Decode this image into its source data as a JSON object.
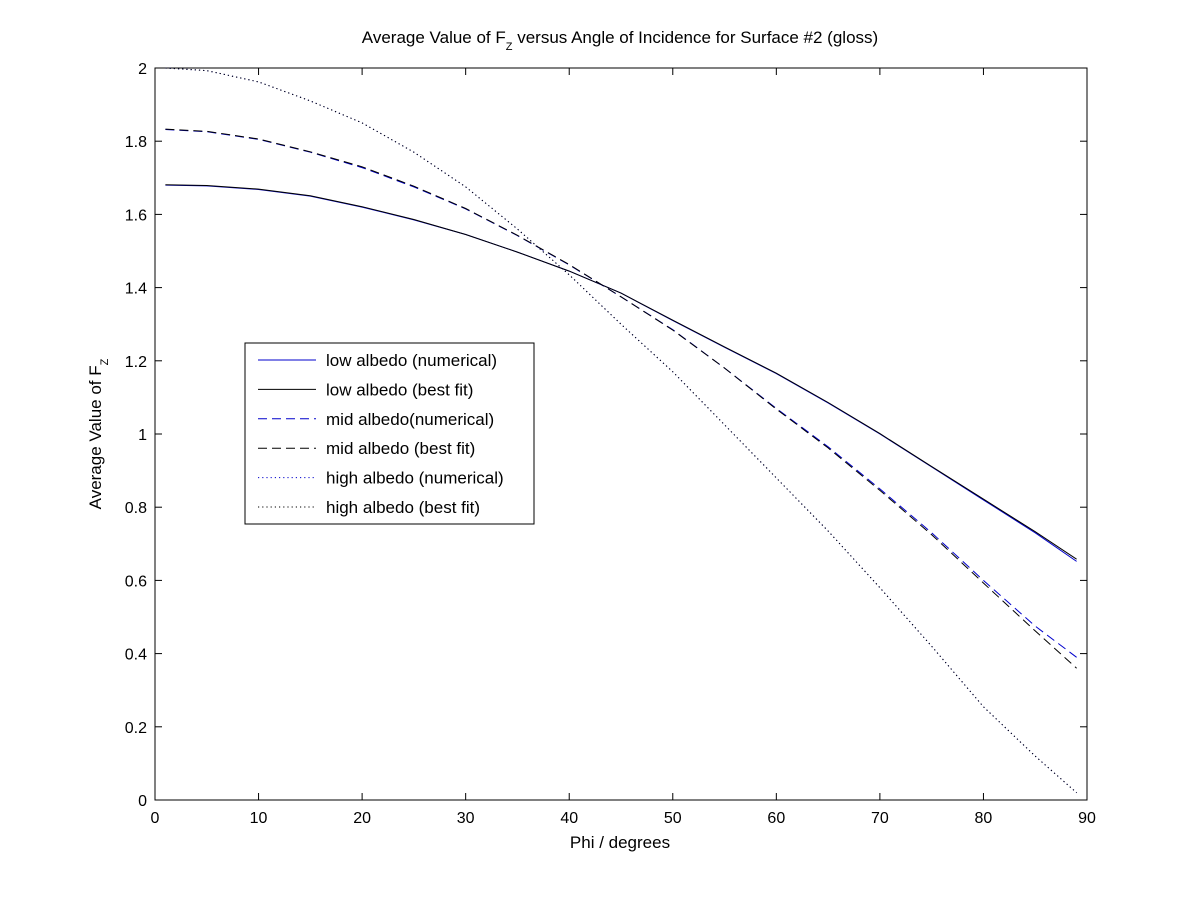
{
  "chart_data": {
    "type": "line",
    "title": {
      "main": "Average Value of F",
      "sub": "Z",
      "rest": " versus Angle of Incidence for Surface #2 (gloss)"
    },
    "xlabel": "Phi / degrees",
    "ylabel": {
      "main": "Average Value of F",
      "sub": "Z"
    },
    "xlim": [
      0,
      90
    ],
    "ylim": [
      0,
      2
    ],
    "xticks": [
      "0",
      "10",
      "20",
      "30",
      "40",
      "50",
      "60",
      "70",
      "80",
      "90"
    ],
    "yticks": [
      "0",
      "0.2",
      "0.4",
      "0.6",
      "0.8",
      "1",
      "1.2",
      "1.4",
      "1.6",
      "1.8",
      "2"
    ],
    "grid": false,
    "legend_position": "left-middle",
    "x": [
      1,
      5,
      10,
      15,
      20,
      25,
      30,
      35,
      40,
      45,
      50,
      55,
      60,
      65,
      70,
      75,
      80,
      85,
      89
    ],
    "series": [
      {
        "name": "low albedo (numerical)",
        "color": "#0000cc",
        "dash": "solid",
        "values": [
          1.68,
          1.678,
          1.668,
          1.65,
          1.62,
          1.585,
          1.545,
          1.497,
          1.445,
          1.385,
          1.31,
          1.237,
          1.165,
          1.085,
          1.0,
          0.91,
          0.82,
          0.73,
          0.652
        ]
      },
      {
        "name": "low albedo (best fit)",
        "color": "#000000",
        "dash": "solid",
        "values": [
          1.681,
          1.679,
          1.669,
          1.651,
          1.621,
          1.586,
          1.545,
          1.497,
          1.445,
          1.385,
          1.311,
          1.238,
          1.166,
          1.086,
          1.001,
          0.911,
          0.822,
          0.733,
          0.658
        ]
      },
      {
        "name": "mid albedo(numerical)",
        "color": "#0000cc",
        "dash": "dashed",
        "values": [
          1.832,
          1.826,
          1.805,
          1.77,
          1.728,
          1.675,
          1.615,
          1.542,
          1.462,
          1.375,
          1.285,
          1.18,
          1.07,
          0.965,
          0.85,
          0.73,
          0.6,
          0.475,
          0.39
        ]
      },
      {
        "name": "mid albedo (best fit)",
        "color": "#000000",
        "dash": "dashed",
        "values": [
          1.833,
          1.827,
          1.806,
          1.771,
          1.73,
          1.677,
          1.616,
          1.543,
          1.463,
          1.375,
          1.284,
          1.18,
          1.068,
          0.962,
          0.846,
          0.725,
          0.593,
          0.462,
          0.36
        ]
      },
      {
        "name": "high albedo (numerical)",
        "color": "#0000cc",
        "dash": "dotted",
        "values": [
          2.0,
          1.993,
          1.962,
          1.91,
          1.85,
          1.77,
          1.675,
          1.56,
          1.435,
          1.3,
          1.17,
          1.025,
          0.88,
          0.735,
          0.58,
          0.42,
          0.255,
          0.12,
          0.02
        ]
      },
      {
        "name": "high albedo (best fit)",
        "color": "#000000",
        "dash": "dotted",
        "values": [
          2.0,
          1.993,
          1.962,
          1.91,
          1.85,
          1.77,
          1.675,
          1.56,
          1.435,
          1.3,
          1.17,
          1.025,
          0.88,
          0.735,
          0.58,
          0.42,
          0.255,
          0.12,
          0.02
        ]
      }
    ]
  }
}
